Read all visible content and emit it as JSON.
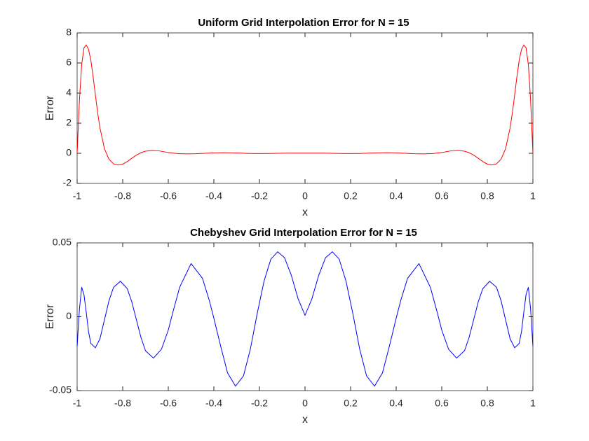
{
  "chart_data": [
    {
      "type": "line",
      "title": "Uniform Grid Interpolation Error for N = 15",
      "xlabel": "x",
      "ylabel": "Error",
      "color": "#ff0000",
      "x": [
        -1,
        -0.99,
        -0.98,
        -0.97,
        -0.96,
        -0.95,
        -0.94,
        -0.93,
        -0.92,
        -0.91,
        -0.9,
        -0.88,
        -0.86,
        -0.84,
        -0.82,
        -0.8,
        -0.78,
        -0.76,
        -0.74,
        -0.72,
        -0.7,
        -0.67,
        -0.64,
        -0.6,
        -0.56,
        -0.52,
        -0.48,
        -0.44,
        -0.4,
        -0.36,
        -0.32,
        -0.28,
        -0.24,
        -0.2,
        -0.16,
        -0.12,
        -0.08,
        -0.04,
        0,
        0.04,
        0.08,
        0.12,
        0.16,
        0.2,
        0.24,
        0.28,
        0.32,
        0.36,
        0.4,
        0.44,
        0.48,
        0.52,
        0.56,
        0.6,
        0.64,
        0.67,
        0.7,
        0.72,
        0.74,
        0.76,
        0.78,
        0.8,
        0.82,
        0.84,
        0.86,
        0.88,
        0.9,
        0.91,
        0.92,
        0.93,
        0.94,
        0.95,
        0.96,
        0.97,
        0.98,
        0.99,
        1
      ],
      "values": [
        0,
        3.5,
        5.9,
        7.0,
        7.2,
        6.9,
        6.2,
        5.1,
        3.9,
        2.7,
        1.7,
        0.3,
        -0.4,
        -0.7,
        -0.78,
        -0.72,
        -0.55,
        -0.33,
        -0.12,
        0.04,
        0.14,
        0.19,
        0.16,
        0.05,
        -0.02,
        -0.04,
        -0.03,
        0,
        0.03,
        0.04,
        0.03,
        0.01,
        -0.01,
        -0.02,
        -0.01,
        0,
        0.01,
        0.01,
        0.01,
        0.01,
        0.01,
        0,
        -0.01,
        -0.02,
        -0.01,
        0.01,
        0.03,
        0.04,
        0.03,
        0,
        -0.03,
        -0.04,
        -0.02,
        0.05,
        0.16,
        0.19,
        0.14,
        0.04,
        -0.12,
        -0.33,
        -0.55,
        -0.72,
        -0.78,
        -0.7,
        -0.4,
        0.3,
        1.7,
        2.7,
        3.9,
        5.1,
        6.2,
        6.9,
        7.2,
        7.0,
        5.9,
        3.5,
        0
      ],
      "xlim": [
        -1,
        1
      ],
      "xticks": [
        -1,
        -0.8,
        -0.6,
        -0.4,
        -0.2,
        0,
        0.2,
        0.4,
        0.6,
        0.8,
        1
      ],
      "ylim": [
        -2,
        8
      ],
      "yticks": [
        -2,
        0,
        2,
        4,
        6,
        8
      ]
    },
    {
      "type": "line",
      "title": "Chebyshev Grid Interpolation Error for N = 15",
      "xlabel": "x",
      "ylabel": "Error",
      "color": "#0000ff",
      "x": [
        -1,
        -0.99,
        -0.98,
        -0.97,
        -0.96,
        -0.95,
        -0.94,
        -0.92,
        -0.9,
        -0.88,
        -0.86,
        -0.84,
        -0.81,
        -0.78,
        -0.76,
        -0.74,
        -0.72,
        -0.7,
        -0.665,
        -0.63,
        -0.6,
        -0.58,
        -0.55,
        -0.5,
        -0.45,
        -0.42,
        -0.4,
        -0.37,
        -0.34,
        -0.305,
        -0.27,
        -0.24,
        -0.21,
        -0.18,
        -0.15,
        -0.12,
        -0.09,
        -0.06,
        -0.03,
        0,
        0.03,
        0.06,
        0.09,
        0.12,
        0.15,
        0.18,
        0.21,
        0.24,
        0.27,
        0.305,
        0.34,
        0.37,
        0.4,
        0.42,
        0.45,
        0.5,
        0.55,
        0.58,
        0.6,
        0.63,
        0.665,
        0.7,
        0.72,
        0.74,
        0.76,
        0.78,
        0.81,
        0.84,
        0.86,
        0.88,
        0.9,
        0.92,
        0.94,
        0.95,
        0.96,
        0.97,
        0.98,
        0.99,
        1
      ],
      "values": [
        -0.02,
        0.005,
        0.02,
        0.015,
        0.003,
        -0.01,
        -0.018,
        -0.021,
        -0.015,
        -0.002,
        0.011,
        0.02,
        0.024,
        0.019,
        0.01,
        -0.002,
        -0.014,
        -0.023,
        -0.028,
        -0.022,
        -0.009,
        0.003,
        0.02,
        0.036,
        0.026,
        0.011,
        -0.001,
        -0.02,
        -0.038,
        -0.047,
        -0.04,
        -0.022,
        0.002,
        0.024,
        0.039,
        0.044,
        0.04,
        0.028,
        0.012,
        0.001,
        0.012,
        0.028,
        0.04,
        0.044,
        0.039,
        0.024,
        0.002,
        -0.022,
        -0.04,
        -0.047,
        -0.038,
        -0.02,
        -0.001,
        0.011,
        0.026,
        0.036,
        0.02,
        0.003,
        -0.009,
        -0.022,
        -0.028,
        -0.023,
        -0.014,
        -0.002,
        0.01,
        0.019,
        0.024,
        0.02,
        0.011,
        -0.002,
        -0.015,
        -0.021,
        -0.018,
        -0.01,
        0.003,
        0.015,
        0.02,
        0.005,
        -0.02
      ],
      "xlim": [
        -1,
        1
      ],
      "xticks": [
        -1,
        -0.8,
        -0.6,
        -0.4,
        -0.2,
        0,
        0.2,
        0.4,
        0.6,
        0.8,
        1
      ],
      "ylim": [
        -0.05,
        0.05
      ],
      "yticks": [
        -0.05,
        0,
        0.05
      ]
    }
  ]
}
